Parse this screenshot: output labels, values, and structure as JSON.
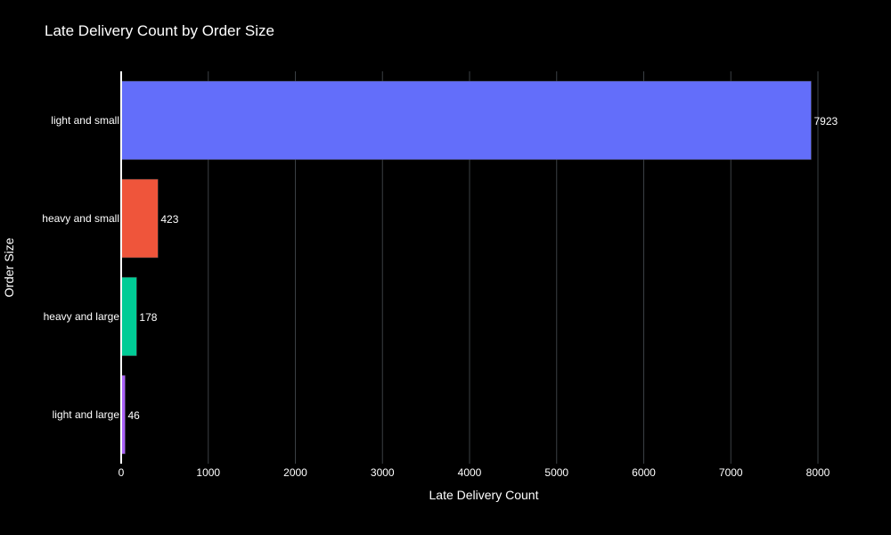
{
  "chart_data": {
    "type": "bar",
    "orientation": "horizontal",
    "title": "Late Delivery Count by Order Size",
    "xlabel": "Late Delivery Count",
    "ylabel": "Order Size",
    "categories": [
      "light and small",
      "heavy and small",
      "heavy and large",
      "light and large"
    ],
    "values": [
      7923,
      423,
      178,
      46
    ],
    "value_labels": [
      "7923",
      "423",
      "178",
      "46"
    ],
    "colors": [
      "#636efa",
      "#ef553b",
      "#00cc96",
      "#ab63fa"
    ],
    "xlim": [
      0,
      8200
    ],
    "xticks": [
      0,
      1000,
      2000,
      3000,
      4000,
      5000,
      6000,
      7000,
      8000
    ],
    "xtick_labels": [
      "0",
      "1000",
      "2000",
      "3000",
      "4000",
      "5000",
      "6000",
      "7000",
      "8000"
    ],
    "grid": true,
    "legend": false,
    "background": "#000000",
    "grid_color": "#3a3f44"
  }
}
